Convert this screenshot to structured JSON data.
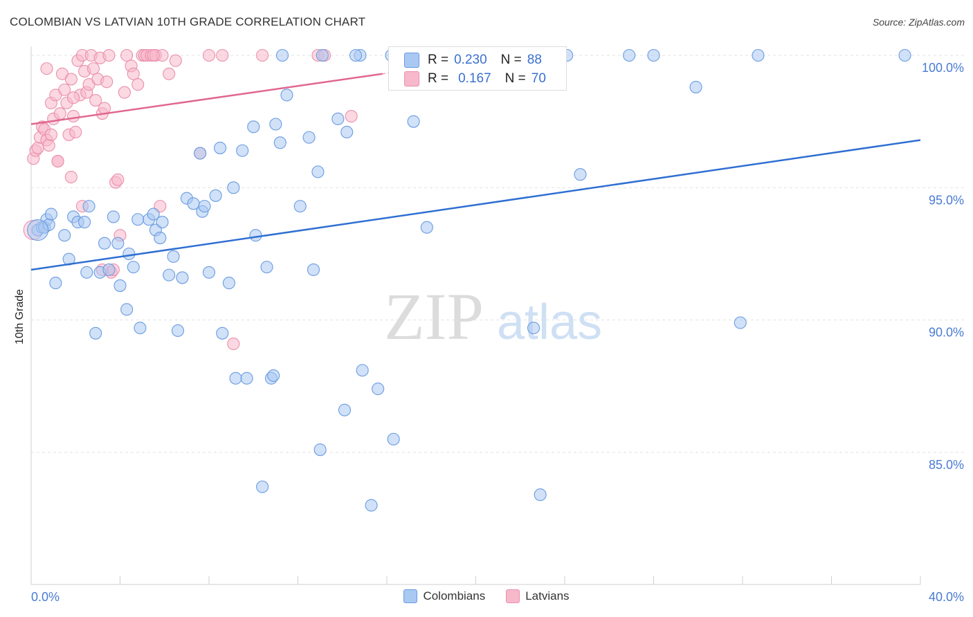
{
  "header": {
    "title": "COLOMBIAN VS LATVIAN 10TH GRADE CORRELATION CHART",
    "source": "Source: ZipAtlas.com"
  },
  "watermark": {
    "zip": "ZIP",
    "atlas": "atlas"
  },
  "stats_legend": [
    {
      "r_label": "R =",
      "r_value": "0.230",
      "n_label": "N =",
      "n_value": "88",
      "color": "#a9c8f2"
    },
    {
      "r_label": "R =",
      "r_value": "0.167",
      "n_label": "N =",
      "n_value": "70",
      "color": "#f7b8cb"
    }
  ],
  "bottom_legend": [
    {
      "label": "Colombians",
      "color": "#a9c8f2"
    },
    {
      "label": "Latvians",
      "color": "#f7b8cb"
    }
  ],
  "chart_data": {
    "type": "scatter",
    "title": "COLOMBIAN VS LATVIAN 10TH GRADE CORRELATION CHART",
    "xlabel": "",
    "ylabel": "10th Grade",
    "xlim": [
      0,
      40
    ],
    "ylim": [
      80.5,
      100.4
    ],
    "x_tick_labels": [
      "0.0%",
      "40.0%"
    ],
    "y_ticks": [
      85,
      90,
      95,
      100
    ],
    "y_tick_labels": [
      "85.0%",
      "90.0%",
      "95.0%",
      "100.0%"
    ],
    "grid": true,
    "series": [
      {
        "name": "Colombians",
        "color": "#6a9be0",
        "fill": "#a9c8f2",
        "trend": {
          "x": [
            0,
            40
          ],
          "y": [
            91.9,
            96.8
          ]
        },
        "points": [
          [
            0.3,
            93.4
          ],
          [
            0.5,
            93.5
          ],
          [
            0.6,
            93.5
          ],
          [
            0.7,
            93.8
          ],
          [
            0.8,
            93.6
          ],
          [
            0.9,
            94.0
          ],
          [
            1.1,
            91.4
          ],
          [
            1.5,
            93.2
          ],
          [
            1.7,
            92.3
          ],
          [
            1.9,
            93.9
          ],
          [
            2.1,
            93.7
          ],
          [
            2.4,
            93.7
          ],
          [
            2.5,
            91.8
          ],
          [
            2.6,
            94.3
          ],
          [
            2.9,
            89.5
          ],
          [
            3.1,
            91.8
          ],
          [
            3.3,
            92.9
          ],
          [
            3.5,
            91.9
          ],
          [
            3.7,
            93.9
          ],
          [
            3.9,
            92.9
          ],
          [
            4.0,
            91.3
          ],
          [
            4.3,
            90.4
          ],
          [
            4.4,
            92.5
          ],
          [
            4.6,
            92.0
          ],
          [
            4.8,
            93.8
          ],
          [
            4.9,
            89.7
          ],
          [
            5.3,
            93.8
          ],
          [
            5.5,
            94.0
          ],
          [
            5.6,
            93.4
          ],
          [
            5.8,
            93.1
          ],
          [
            5.9,
            93.7
          ],
          [
            6.2,
            91.7
          ],
          [
            6.4,
            92.4
          ],
          [
            6.6,
            89.6
          ],
          [
            6.8,
            91.6
          ],
          [
            7.0,
            94.6
          ],
          [
            7.3,
            94.4
          ],
          [
            7.6,
            96.3
          ],
          [
            7.7,
            94.1
          ],
          [
            7.8,
            94.3
          ],
          [
            8.0,
            91.8
          ],
          [
            8.3,
            94.7
          ],
          [
            8.5,
            96.5
          ],
          [
            8.6,
            89.5
          ],
          [
            8.9,
            91.4
          ],
          [
            9.1,
            95.0
          ],
          [
            9.2,
            87.8
          ],
          [
            9.5,
            96.4
          ],
          [
            9.7,
            87.8
          ],
          [
            10.0,
            97.3
          ],
          [
            10.1,
            93.2
          ],
          [
            10.4,
            83.7
          ],
          [
            10.6,
            92.0
          ],
          [
            10.8,
            87.8
          ],
          [
            10.9,
            87.9
          ],
          [
            11.0,
            97.4
          ],
          [
            11.2,
            96.7
          ],
          [
            11.3,
            100.0
          ],
          [
            11.5,
            98.5
          ],
          [
            12.1,
            94.3
          ],
          [
            12.5,
            96.9
          ],
          [
            12.7,
            91.9
          ],
          [
            12.9,
            95.6
          ],
          [
            13.0,
            85.1
          ],
          [
            13.1,
            100.0
          ],
          [
            13.8,
            97.6
          ],
          [
            14.1,
            86.6
          ],
          [
            14.2,
            97.1
          ],
          [
            14.8,
            100.0
          ],
          [
            14.9,
            88.1
          ],
          [
            15.3,
            83.0
          ],
          [
            15.6,
            87.4
          ],
          [
            16.2,
            100.0
          ],
          [
            16.3,
            85.5
          ],
          [
            17.2,
            97.5
          ],
          [
            17.8,
            93.5
          ],
          [
            18.7,
            100.0
          ],
          [
            22.6,
            89.7
          ],
          [
            22.9,
            83.4
          ],
          [
            24.1,
            100.0
          ],
          [
            24.7,
            95.5
          ],
          [
            26.9,
            100.0
          ],
          [
            28.0,
            100.0
          ],
          [
            29.9,
            98.8
          ],
          [
            31.9,
            89.9
          ],
          [
            32.7,
            100.0
          ],
          [
            39.3,
            100.0
          ],
          [
            14.6,
            100.0
          ]
        ]
      },
      {
        "name": "Latvians",
        "color": "#ea8fac",
        "fill": "#f7b8cb",
        "trend": {
          "x": [
            0,
            15.8
          ],
          "y": [
            97.4,
            99.3
          ]
        },
        "points": [
          [
            0.1,
            96.1
          ],
          [
            0.2,
            96.4
          ],
          [
            0.3,
            96.5
          ],
          [
            0.4,
            96.9
          ],
          [
            0.5,
            97.3
          ],
          [
            0.6,
            97.2
          ],
          [
            0.7,
            96.8
          ],
          [
            0.8,
            96.6
          ],
          [
            0.9,
            98.2
          ],
          [
            0.9,
            97.0
          ],
          [
            1.0,
            97.6
          ],
          [
            1.1,
            98.5
          ],
          [
            1.2,
            96.0
          ],
          [
            1.3,
            97.8
          ],
          [
            1.4,
            99.3
          ],
          [
            1.5,
            98.7
          ],
          [
            1.6,
            98.2
          ],
          [
            1.7,
            97.0
          ],
          [
            1.8,
            99.1
          ],
          [
            1.9,
            97.7
          ],
          [
            2.0,
            97.1
          ],
          [
            2.1,
            99.8
          ],
          [
            2.2,
            98.5
          ],
          [
            2.3,
            100.0
          ],
          [
            2.4,
            99.4
          ],
          [
            2.5,
            98.6
          ],
          [
            2.6,
            98.9
          ],
          [
            2.7,
            100.0
          ],
          [
            2.8,
            99.5
          ],
          [
            2.9,
            98.3
          ],
          [
            3.0,
            99.1
          ],
          [
            3.1,
            99.9
          ],
          [
            3.2,
            97.8
          ],
          [
            3.3,
            98.0
          ],
          [
            3.4,
            99.0
          ],
          [
            3.5,
            100.0
          ],
          [
            3.6,
            91.8
          ],
          [
            3.7,
            91.9
          ],
          [
            3.8,
            95.2
          ],
          [
            3.9,
            95.3
          ],
          [
            4.0,
            93.2
          ],
          [
            4.2,
            98.6
          ],
          [
            4.3,
            100.0
          ],
          [
            4.5,
            99.6
          ],
          [
            4.8,
            98.9
          ],
          [
            5.0,
            100.0
          ],
          [
            5.1,
            100.0
          ],
          [
            5.2,
            100.0
          ],
          [
            5.4,
            100.0
          ],
          [
            5.6,
            100.0
          ],
          [
            5.8,
            94.3
          ],
          [
            5.9,
            100.0
          ],
          [
            6.2,
            99.3
          ],
          [
            6.5,
            99.8
          ],
          [
            7.6,
            96.3
          ],
          [
            8.0,
            100.0
          ],
          [
            8.6,
            100.0
          ],
          [
            9.1,
            89.1
          ],
          [
            10.4,
            100.0
          ],
          [
            12.9,
            100.0
          ],
          [
            13.2,
            100.0
          ],
          [
            14.4,
            97.7
          ],
          [
            1.8,
            95.4
          ],
          [
            2.3,
            94.3
          ],
          [
            1.2,
            96.0
          ],
          [
            0.7,
            99.5
          ],
          [
            1.9,
            98.4
          ],
          [
            4.6,
            99.3
          ],
          [
            5.5,
            100.0
          ],
          [
            3.2,
            91.9
          ]
        ]
      }
    ]
  }
}
